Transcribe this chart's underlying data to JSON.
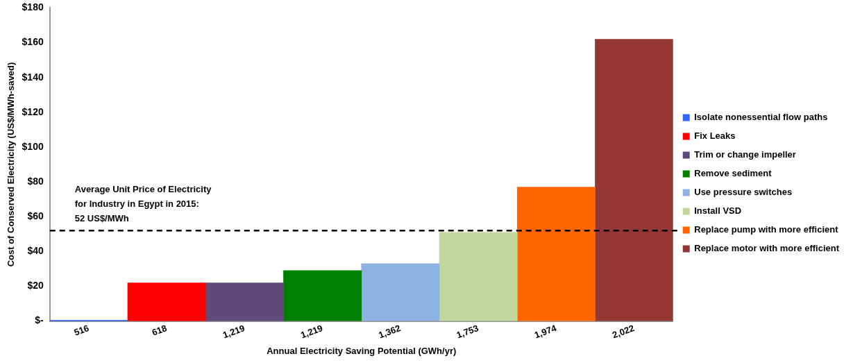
{
  "chart_data": {
    "type": "bar",
    "xlabel": "Annual Electricity Saving Potential (GWh/yr)",
    "ylabel": "Cost of Conserved Electricity (US$/MWh-saved)",
    "categories": [
      "516",
      "618",
      "1,219",
      "1,219",
      "1,362",
      "1,753",
      "1,974",
      "2,022"
    ],
    "stacked": true,
    "series": [
      {
        "name": "Isolate nonessential flow paths",
        "color": "#3366ff",
        "values": [
          0.5,
          null,
          null,
          null,
          null,
          null,
          null,
          null
        ]
      },
      {
        "name": "Fix Leaks",
        "color": "#ff0000",
        "values": [
          null,
          22,
          null,
          null,
          null,
          null,
          null,
          null
        ]
      },
      {
        "name": "Trim or change impeller",
        "color": "#604a7b",
        "values": [
          null,
          null,
          22,
          null,
          null,
          null,
          null,
          null
        ]
      },
      {
        "name": "Remove sediment",
        "color": "#008000",
        "values": [
          null,
          null,
          null,
          29,
          null,
          null,
          null,
          null
        ]
      },
      {
        "name": "Use pressure switches",
        "color": "#8db3e2",
        "values": [
          null,
          null,
          null,
          null,
          33,
          null,
          null,
          null
        ]
      },
      {
        "name": "Install VSD",
        "color": "#c3d69b",
        "values": [
          null,
          null,
          null,
          null,
          null,
          51,
          null,
          null
        ]
      },
      {
        "name": "Replace pump with more efficient",
        "color": "#ff6600",
        "values": [
          null,
          null,
          null,
          null,
          null,
          null,
          77,
          null
        ]
      },
      {
        "name": "Replace motor with more efficient",
        "color": "#953735",
        "values": [
          null,
          null,
          null,
          null,
          null,
          null,
          null,
          162
        ]
      }
    ],
    "ylim": [
      0,
      180
    ],
    "yticks": [
      {
        "value": 0,
        "label": "$-"
      },
      {
        "value": 20,
        "label": "$20"
      },
      {
        "value": 40,
        "label": "$40"
      },
      {
        "value": 60,
        "label": "$60"
      },
      {
        "value": 80,
        "label": "$80"
      },
      {
        "value": 100,
        "label": "$100"
      },
      {
        "value": 120,
        "label": "$120"
      },
      {
        "value": 140,
        "label": "$140"
      },
      {
        "value": 160,
        "label": "$160"
      },
      {
        "value": 180,
        "label": "$180"
      }
    ],
    "ref_lines": [
      {
        "axis": "y",
        "value": 52,
        "label": "Average Unit Price of Electricity\nfor Industry in Egypt in 2015:\n52 US$/MWh",
        "color": "#000000",
        "line_style": "dashed"
      }
    ],
    "grid": false,
    "legend": "right"
  }
}
